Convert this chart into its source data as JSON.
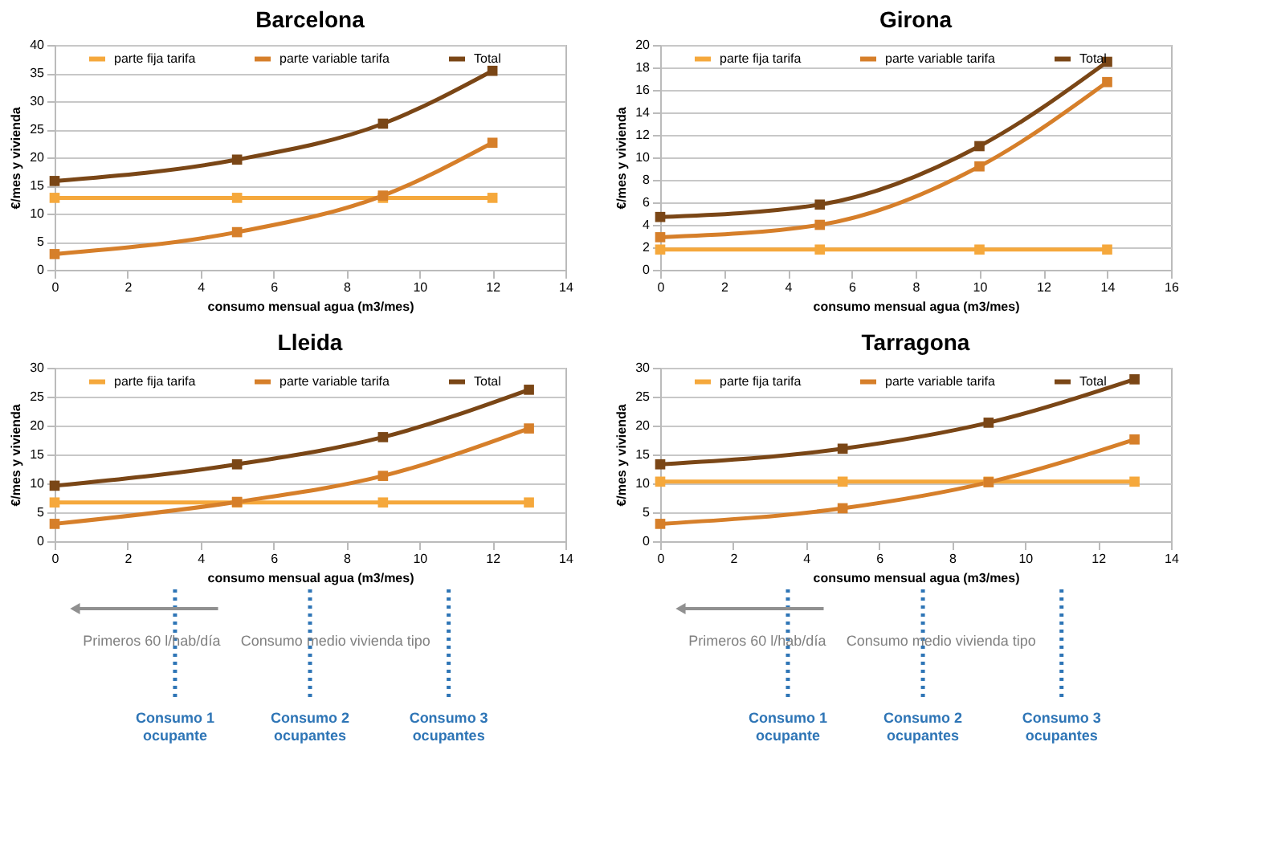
{
  "chart_data": [
    {
      "type": "line",
      "title": "Barcelona",
      "xlabel": "consumo mensual agua (m3/mes)",
      "ylabel": "€/mes y vivienda",
      "x": [
        0,
        5,
        9,
        12
      ],
      "xlim": [
        0,
        14
      ],
      "xticks": [
        0,
        2,
        4,
        6,
        8,
        10,
        12,
        14
      ],
      "ylim": [
        0,
        40
      ],
      "yticks": [
        0,
        5,
        10,
        15,
        20,
        25,
        30,
        35,
        40
      ],
      "grid": "y",
      "legend": "top",
      "marker": "square",
      "line_style": "solid",
      "series": [
        {
          "name": "parte fija tarifa",
          "color": "#f5a83c",
          "values": [
            12.8,
            12.8,
            12.8,
            12.8
          ]
        },
        {
          "name": "parte variable tarifa",
          "color": "#d67f2a",
          "values": [
            2.8,
            6.7,
            13.2,
            22.6
          ]
        },
        {
          "name": "Total",
          "color": "#7a4616",
          "values": [
            15.8,
            19.6,
            26,
            35.4
          ]
        }
      ]
    },
    {
      "type": "line",
      "title": "Girona",
      "xlabel": "consumo mensual agua (m3/mes)",
      "ylabel": "€/mes y vivienda",
      "x": [
        0,
        5,
        10,
        14
      ],
      "xlim": [
        0,
        16
      ],
      "xticks": [
        0,
        2,
        4,
        6,
        8,
        10,
        12,
        14,
        16
      ],
      "ylim": [
        0,
        20
      ],
      "yticks": [
        0,
        2,
        4,
        6,
        8,
        10,
        12,
        14,
        16,
        18,
        20
      ],
      "grid": "y",
      "legend": "top",
      "marker": "square",
      "line_style": "solid",
      "series": [
        {
          "name": "parte fija tarifa",
          "color": "#f5a83c",
          "values": [
            1.8,
            1.8,
            1.8,
            1.8
          ]
        },
        {
          "name": "parte variable tarifa",
          "color": "#d67f2a",
          "values": [
            2.9,
            4.0,
            9.2,
            16.7
          ]
        },
        {
          "name": "Total",
          "color": "#7a4616",
          "values": [
            4.7,
            5.8,
            11.0,
            18.5
          ]
        }
      ]
    },
    {
      "type": "line",
      "title": "Lleida",
      "xlabel": "consumo mensual agua (m3/mes)",
      "ylabel": "€/mes y vivienda",
      "x": [
        0,
        5,
        9,
        13
      ],
      "xlim": [
        0,
        14
      ],
      "xticks": [
        0,
        2,
        4,
        6,
        8,
        10,
        12,
        14
      ],
      "ylim": [
        0,
        30
      ],
      "yticks": [
        0,
        5,
        10,
        15,
        20,
        25,
        30
      ],
      "grid": "y",
      "legend": "top",
      "marker": "square",
      "line_style": "solid",
      "series": [
        {
          "name": "parte fija tarifa",
          "color": "#f5a83c",
          "values": [
            6.7,
            6.7,
            6.7,
            6.7
          ]
        },
        {
          "name": "parte variable tarifa",
          "color": "#d67f2a",
          "values": [
            3.0,
            6.8,
            11.3,
            19.5
          ]
        },
        {
          "name": "Total",
          "color": "#7a4616",
          "values": [
            9.6,
            13.3,
            18.0,
            26.2
          ]
        }
      ],
      "annotations": [
        "Primeros 60 l/hab/día",
        "Consumo medio vivienda tipo"
      ],
      "ref_lines": [
        {
          "axis": "x",
          "value": 3.3,
          "label": "Consumo 1 ocupante",
          "color": "#2e75b6",
          "line_style": "dotted"
        },
        {
          "axis": "x",
          "value": 7.0,
          "label": "Consumo 2 ocupantes",
          "color": "#2e75b6",
          "line_style": "dotted"
        },
        {
          "axis": "x",
          "value": 10.8,
          "label": "Consumo 3 ocupantes",
          "color": "#2e75b6",
          "line_style": "dotted"
        }
      ]
    },
    {
      "type": "line",
      "title": "Tarragona",
      "xlabel": "consumo mensual agua (m3/mes)",
      "ylabel": "€/mes y vivienda",
      "x": [
        0,
        5,
        9,
        13
      ],
      "xlim": [
        0,
        14
      ],
      "xticks": [
        0,
        2,
        4,
        6,
        8,
        10,
        12,
        14
      ],
      "ylim": [
        0,
        30
      ],
      "yticks": [
        0,
        5,
        10,
        15,
        20,
        25,
        30
      ],
      "grid": "y",
      "legend": "top",
      "marker": "square",
      "line_style": "solid",
      "series": [
        {
          "name": "parte fija tarifa",
          "color": "#f5a83c",
          "values": [
            10.3,
            10.3,
            10.3,
            10.3
          ]
        },
        {
          "name": "parte variable tarifa",
          "color": "#d67f2a",
          "values": [
            3.0,
            5.7,
            10.2,
            17.6
          ]
        },
        {
          "name": "Total",
          "color": "#7a4616",
          "values": [
            13.3,
            16.0,
            20.5,
            28.0
          ]
        }
      ],
      "annotations": [
        "Primeros 60 l/hab/día",
        "Consumo medio vivienda tipo"
      ],
      "ref_lines": [
        {
          "axis": "x",
          "value": 3.5,
          "label": "Consumo 1 ocupante",
          "color": "#2e75b6",
          "line_style": "dotted"
        },
        {
          "axis": "x",
          "value": 7.2,
          "label": "Consumo 2 ocupantes",
          "color": "#2e75b6",
          "line_style": "dotted"
        },
        {
          "axis": "x",
          "value": 11.0,
          "label": "Consumo 3 ocupantes",
          "color": "#2e75b6",
          "line_style": "dotted"
        }
      ]
    }
  ]
}
